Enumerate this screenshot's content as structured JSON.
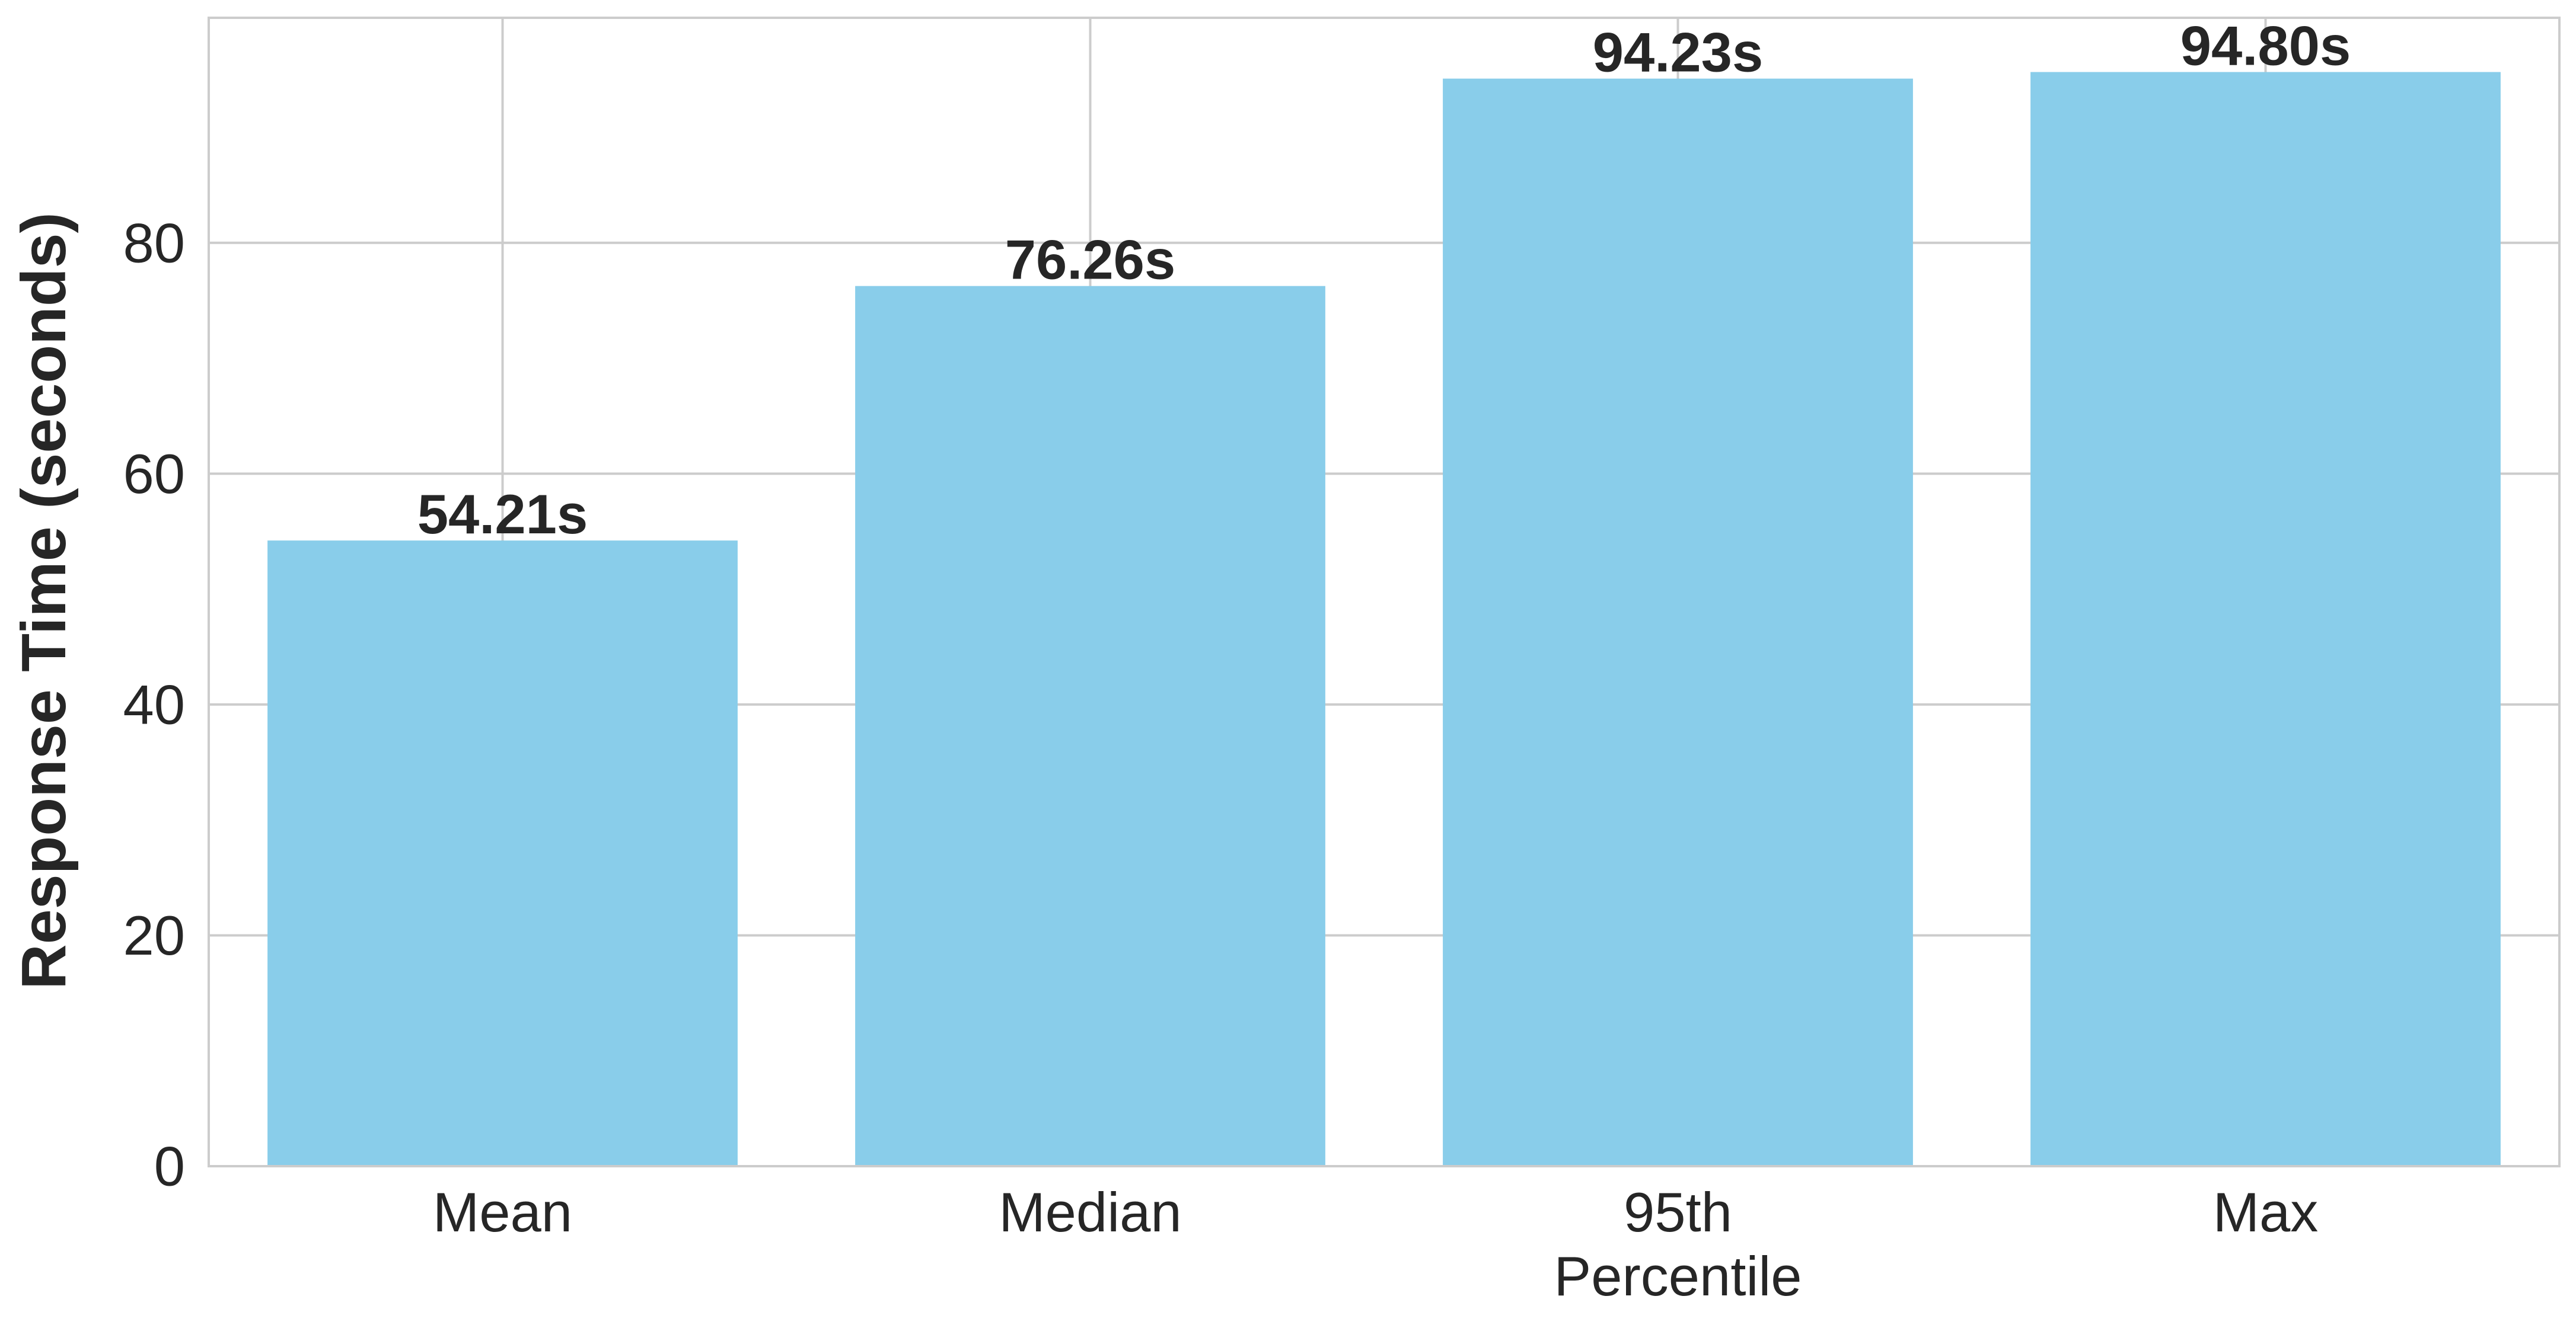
{
  "chart_data": {
    "type": "bar",
    "categories": [
      "Mean",
      "Median",
      "95th\nPercentile",
      "Max"
    ],
    "values": [
      54.21,
      76.26,
      94.23,
      94.8
    ],
    "data_labels": [
      "54.21s",
      "76.26s",
      "94.23s",
      "94.80s"
    ],
    "title": "",
    "xlabel": "",
    "ylabel": "Response Time (seconds)",
    "ylim": [
      0,
      99.5
    ],
    "yticks": [
      0,
      20,
      40,
      60,
      80
    ],
    "grid": true,
    "bar_color": "#89CDEA",
    "grid_color": "#CCCCCC",
    "text_color": "#262626"
  }
}
